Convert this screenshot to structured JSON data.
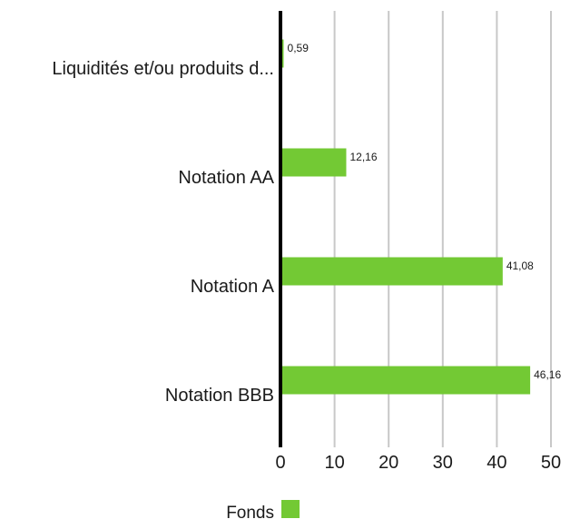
{
  "chart_data": {
    "type": "bar",
    "orientation": "horizontal",
    "categories": [
      "Liquidités et/ou produits d...",
      "Notation AA",
      "Notation A",
      "Notation BBB"
    ],
    "series": [
      {
        "name": "Fonds",
        "values": [
          0.59,
          12.16,
          41.08,
          46.16
        ],
        "value_labels": [
          "0,59",
          "12,16",
          "41,08",
          "46,16"
        ],
        "color": "#73c934"
      }
    ],
    "xlim": [
      0,
      50
    ],
    "x_ticks": [
      0,
      10,
      20,
      30,
      40,
      50
    ],
    "x_tick_labels": [
      "0",
      "10",
      "20",
      "30",
      "40",
      "50"
    ],
    "grid": "vertical",
    "legend_position": "bottom-left"
  },
  "colors": {
    "bar": "#73c934",
    "grid": "#c8c8c8",
    "axis": "#000000"
  }
}
